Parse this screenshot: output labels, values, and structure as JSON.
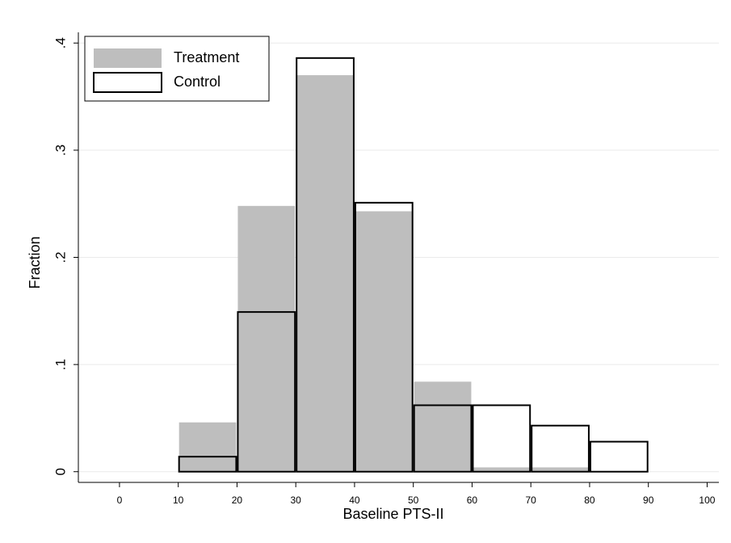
{
  "chart_data": {
    "type": "histogram",
    "xlabel": "Baseline PTS-II",
    "ylabel": "Fraction",
    "bins": [
      10,
      20,
      30,
      40,
      50,
      60,
      70,
      80,
      90
    ],
    "series": [
      {
        "name": "Treatment",
        "color": "#bebebe",
        "filled": true,
        "values": [
          0.046,
          0.248,
          0.37,
          0.243,
          0.084,
          0.004,
          0.004,
          0
        ]
      },
      {
        "name": "Control",
        "color": "#000000",
        "filled": false,
        "values": [
          0.014,
          0.149,
          0.386,
          0.251,
          0.062,
          0.062,
          0.043,
          0.028
        ]
      }
    ],
    "xlim": [
      -7,
      102
    ],
    "xticks": [
      0,
      10,
      20,
      30,
      40,
      50,
      60,
      70,
      80,
      90,
      100
    ],
    "ylim": [
      -0.01,
      0.41
    ],
    "yticks": [
      0,
      {
        "value": 0.1,
        "label": ".1"
      },
      {
        "value": 0.2,
        "label": ".2"
      },
      {
        "value": 0.3,
        "label": ".3"
      },
      {
        "value": 0.4,
        "label": ".4"
      }
    ],
    "grid": true,
    "legend": "top-left"
  }
}
